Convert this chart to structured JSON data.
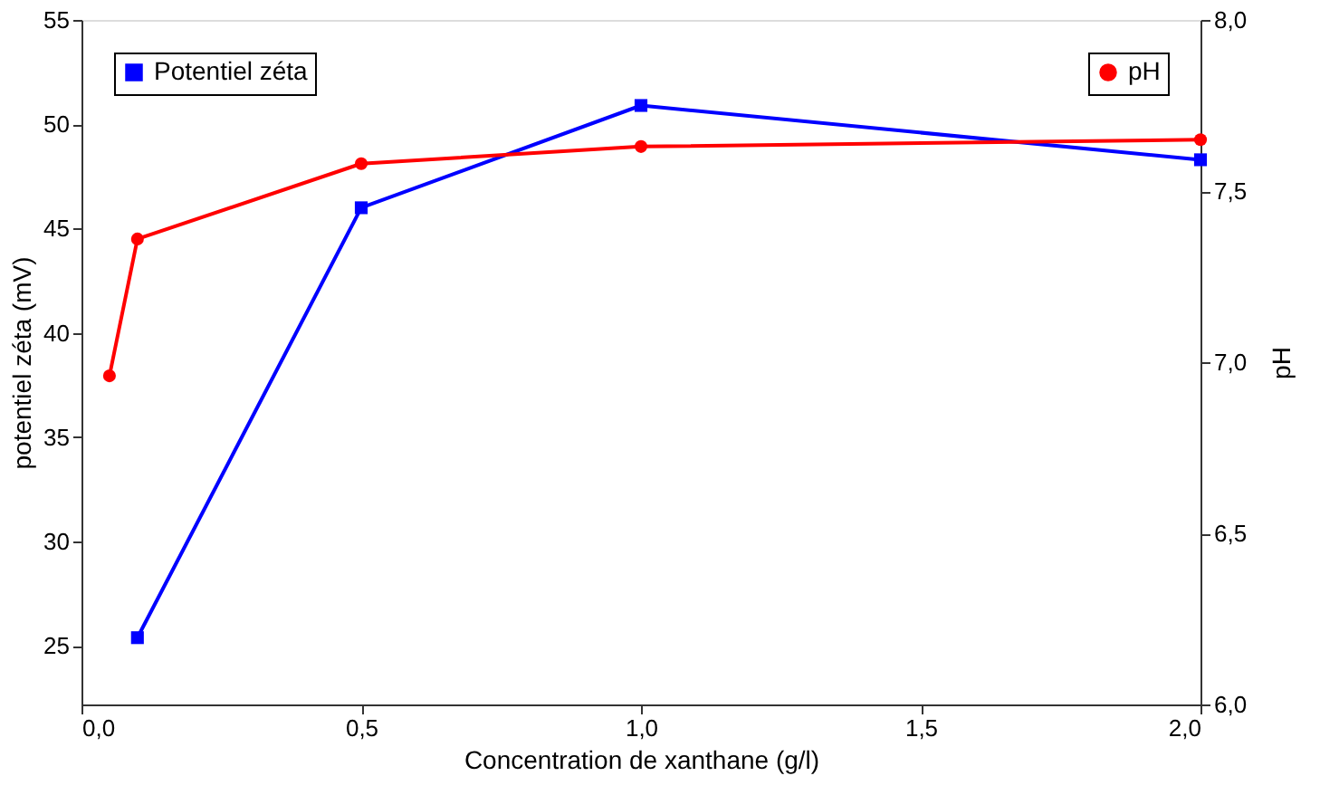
{
  "chart_data": {
    "type": "line",
    "xlabel": "Concentration de xanthane (g/l)",
    "ylabel": "potentiel zéta (mV)",
    "y2label": "pH",
    "xlim": [
      0,
      2
    ],
    "xticks": [
      {
        "value": 0,
        "label": "0,0"
      },
      {
        "value": 0.5,
        "label": "0,5"
      },
      {
        "value": 1,
        "label": "1,0"
      },
      {
        "value": 1.5,
        "label": "1,5"
      },
      {
        "value": 2,
        "label": "2,0"
      }
    ],
    "ylim": [
      22.2,
      55
    ],
    "yticks": [
      25,
      30,
      35,
      40,
      45,
      50,
      55
    ],
    "y2lim": [
      6,
      8
    ],
    "y2ticks": [
      {
        "value": 6,
        "label": "6,0"
      },
      {
        "value": 6.5,
        "label": "6,5"
      },
      {
        "value": 7,
        "label": "7,0"
      },
      {
        "value": 7.5,
        "label": "7,5"
      },
      {
        "value": 8,
        "label": "8,0"
      }
    ],
    "grid": false,
    "legend": "top",
    "series": [
      {
        "name": "Potentiel zéta",
        "color": "#0000ff",
        "marker": "square",
        "x": [
          0.1,
          0.5,
          1,
          2
        ],
        "values": [
          25.4,
          46.0,
          50.9,
          48.3
        ]
      },
      {
        "name": "pH",
        "color": "#ff0000",
        "marker": "circle",
        "axis": "y2",
        "x": [
          0.05,
          0.1,
          0.5,
          1,
          2
        ],
        "values": [
          6.96,
          7.36,
          7.58,
          7.63,
          7.65
        ]
      }
    ]
  }
}
